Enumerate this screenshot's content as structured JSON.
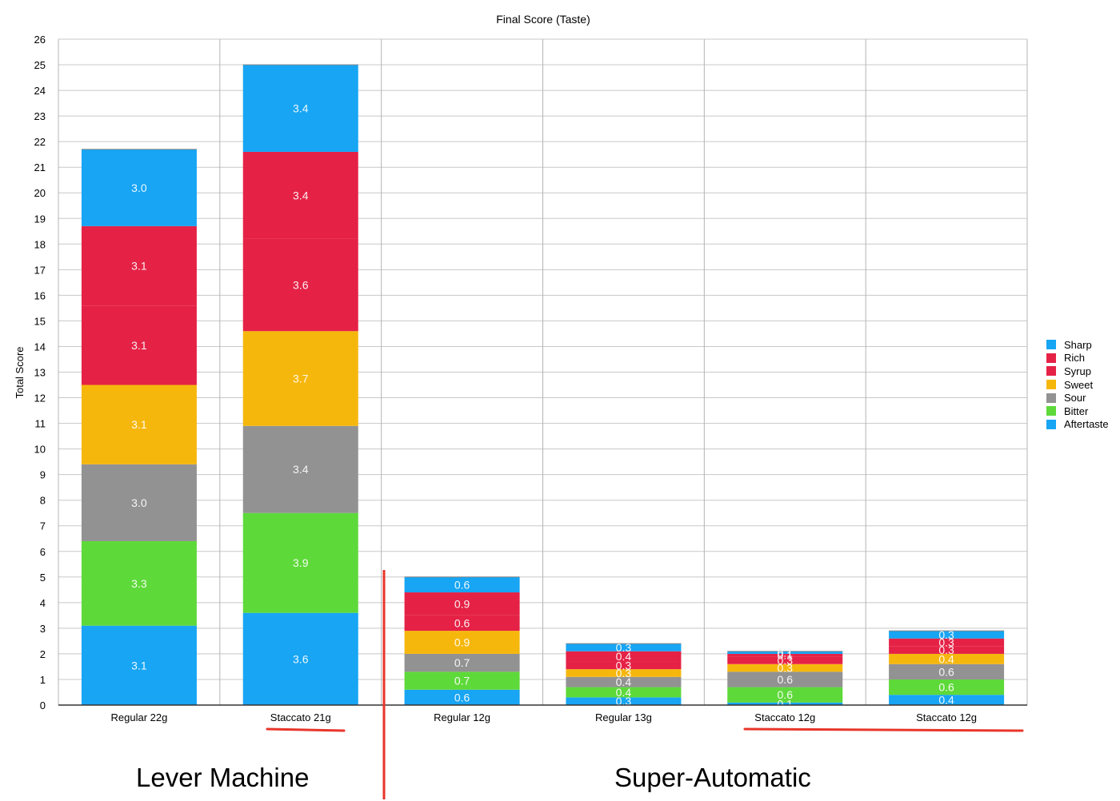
{
  "chart_data": {
    "type": "bar",
    "stacked": true,
    "title": "Final Score (Taste)",
    "xlabel": "",
    "ylabel": "Total Score",
    "ylim": [
      0,
      26
    ],
    "yticks": [
      0,
      1,
      2,
      3,
      4,
      5,
      6,
      7,
      8,
      9,
      10,
      11,
      12,
      13,
      14,
      15,
      16,
      17,
      18,
      19,
      20,
      21,
      22,
      23,
      24,
      25,
      26
    ],
    "grid": true,
    "legend_position": "right",
    "categories": [
      "Regular 22g",
      "Staccato 21g",
      "Regular 12g",
      "Regular 13g",
      "Staccato 12g",
      "Staccato 12g"
    ],
    "series": [
      {
        "name": "Aftertaste",
        "color": "#17a5f4",
        "values": [
          3.1,
          3.6,
          0.6,
          0.3,
          0.1,
          0.4
        ]
      },
      {
        "name": "Bitter",
        "color": "#5ed93a",
        "values": [
          3.3,
          3.9,
          0.7,
          0.4,
          0.6,
          0.6
        ]
      },
      {
        "name": "Sour",
        "color": "#929292",
        "values": [
          3.0,
          3.4,
          0.7,
          0.4,
          0.6,
          0.6
        ]
      },
      {
        "name": "Sweet",
        "color": "#f6b70d",
        "values": [
          3.1,
          3.7,
          0.9,
          0.3,
          0.3,
          0.4
        ]
      },
      {
        "name": "Syrup",
        "color": "#e52246",
        "values": [
          3.1,
          3.6,
          0.6,
          0.3,
          0.3,
          0.3
        ]
      },
      {
        "name": "Rich",
        "color": "#e52246",
        "values": [
          3.1,
          3.4,
          0.9,
          0.4,
          0.1,
          0.3
        ]
      },
      {
        "name": "Sharp",
        "color": "#17a5f4",
        "values": [
          3.0,
          3.4,
          0.6,
          0.3,
          0.1,
          0.3
        ]
      }
    ],
    "legend_order": [
      "Sharp",
      "Rich",
      "Syrup",
      "Sweet",
      "Sour",
      "Bitter",
      "Aftertaste"
    ],
    "annotations": {
      "group_labels": [
        "Lever Machine",
        "Super-Automatic"
      ],
      "highlight_color": "#e8352a"
    }
  }
}
